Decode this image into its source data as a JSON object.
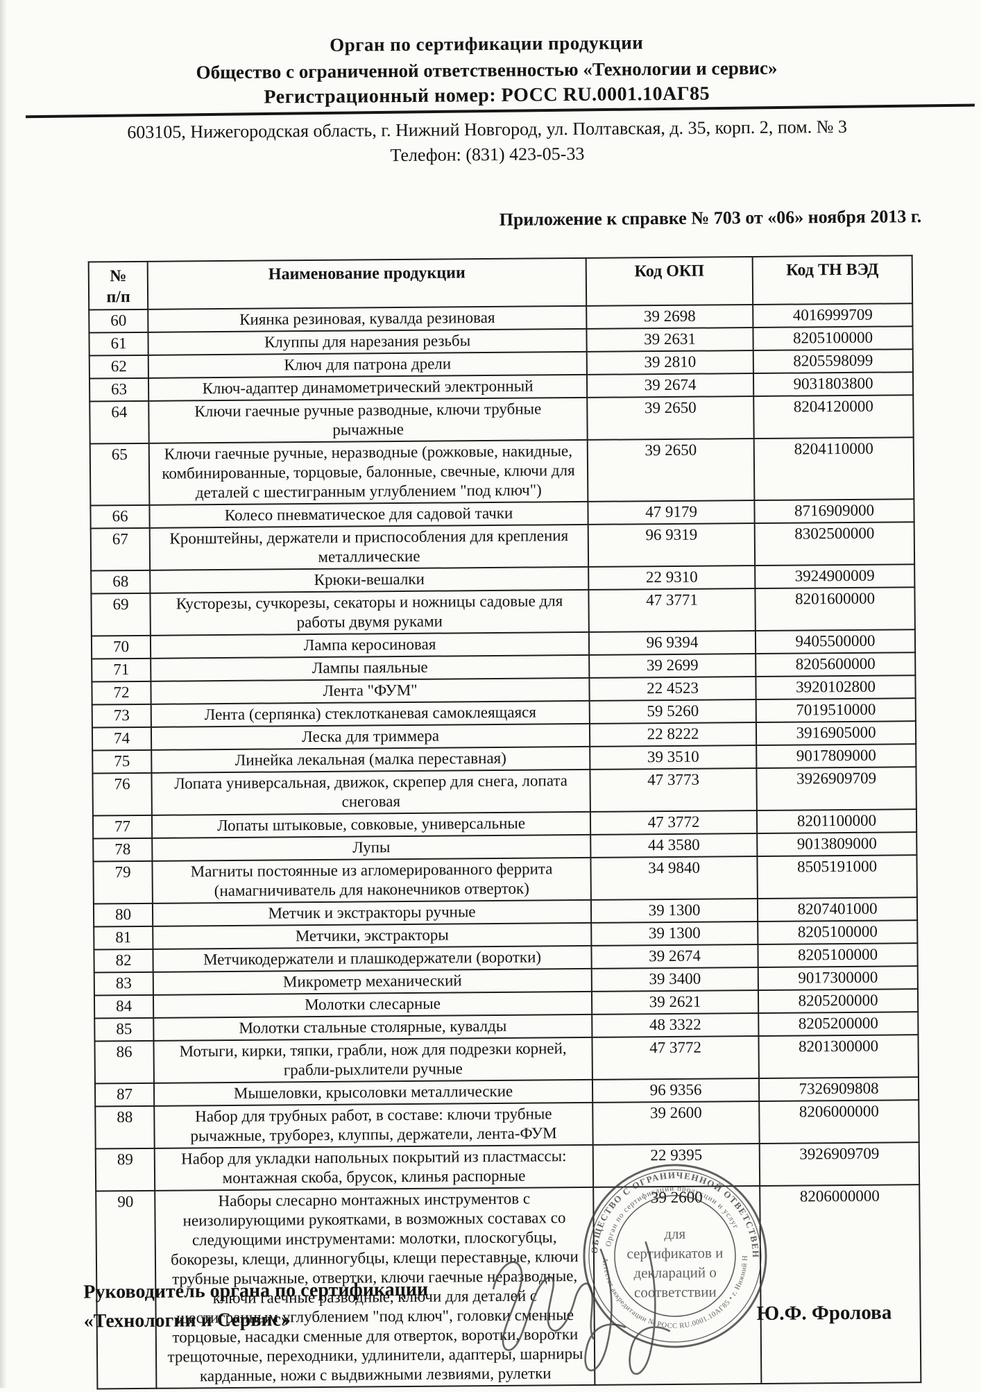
{
  "header": {
    "line1": "Орган по сертификации продукции",
    "line2": "Общество с ограниченной ответственностью «Технологии и сервис»",
    "line3": "Регистрационный номер: РОСС RU.0001.10АГ85",
    "address": "603105, Нижегородская область, г. Нижний Новгород, ул. Полтавская, д. 35, корп. 2, пом. № 3",
    "phone": "Телефон: (831) 423-05-33"
  },
  "appendix_title": "Приложение к справке № 703 от «06» ноября 2013 г.",
  "table": {
    "col_num_line1": "№",
    "col_num_line2": "п/п",
    "col_name": "Наименование продукции",
    "col_okp": "Код ОКП",
    "col_tnved": "Код ТН ВЭД",
    "rows": [
      {
        "num": "60",
        "name": "Киянка резиновая, кувалда резиновая",
        "okp": "39 2698",
        "tnved": "4016999709"
      },
      {
        "num": "61",
        "name": "Клуппы для нарезания резьбы",
        "okp": "39 2631",
        "tnved": "8205100000"
      },
      {
        "num": "62",
        "name": "Ключ для патрона дрели",
        "okp": "39 2810",
        "tnved": "8205598099"
      },
      {
        "num": "63",
        "name": "Ключ-адаптер динамометрический электронный",
        "okp": "39 2674",
        "tnved": "9031803800"
      },
      {
        "num": "64",
        "name": "Ключи гаечные ручные разводные, ключи трубные рычажные",
        "okp": "39 2650",
        "tnved": "8204120000"
      },
      {
        "num": "65",
        "name": "Ключи гаечные ручные, неразводные (рожковые, накидные, комбинированные, торцовые, балонные, свечные, ключи для деталей с шестигранным углублением \"под ключ\")",
        "okp": "39 2650",
        "tnved": "8204110000"
      },
      {
        "num": "66",
        "name": "Колесо пневматическое для садовой тачки",
        "okp": "47 9179",
        "tnved": "8716909000"
      },
      {
        "num": "67",
        "name": "Кронштейны, держатели и приспособления для крепления металлические",
        "okp": "96 9319",
        "tnved": "8302500000"
      },
      {
        "num": "68",
        "name": "Крюки-вешалки",
        "okp": "22 9310",
        "tnved": "3924900009"
      },
      {
        "num": "69",
        "name": "Кусторезы, сучкорезы, секаторы и ножницы садовые для работы двумя руками",
        "okp": "47 3771",
        "tnved": "8201600000"
      },
      {
        "num": "70",
        "name": "Лампа керосиновая",
        "okp": "96 9394",
        "tnved": "9405500000"
      },
      {
        "num": "71",
        "name": "Лампы паяльные",
        "okp": "39 2699",
        "tnved": "8205600000"
      },
      {
        "num": "72",
        "name": "Лента \"ФУМ\"",
        "okp": "22 4523",
        "tnved": "3920102800"
      },
      {
        "num": "73",
        "name": "Лента (серпянка) стеклотканевая самоклеящаяся",
        "okp": "59 5260",
        "tnved": "7019510000"
      },
      {
        "num": "74",
        "name": "Леска для триммера",
        "okp": "22 8222",
        "tnved": "3916905000"
      },
      {
        "num": "75",
        "name": "Линейка лекальная (малка переставная)",
        "okp": "39 3510",
        "tnved": "9017809000"
      },
      {
        "num": "76",
        "name": "Лопата универсальная, движок, скрепер для снега, лопата снеговая",
        "okp": "47 3773",
        "tnved": "3926909709"
      },
      {
        "num": "77",
        "name": "Лопаты штыковые, совковые, универсальные",
        "okp": "47 3772",
        "tnved": "8201100000"
      },
      {
        "num": "78",
        "name": "Лупы",
        "okp": "44 3580",
        "tnved": "9013809000"
      },
      {
        "num": "79",
        "name": "Магниты постоянные из агломерированного феррита (намагничиватель для наконечников отверток)",
        "okp": "34 9840",
        "tnved": "8505191000"
      },
      {
        "num": "80",
        "name": "Метчик и экстракторы ручные",
        "okp": "39 1300",
        "tnved": "8207401000"
      },
      {
        "num": "81",
        "name": "Метчики, экстракторы",
        "okp": "39 1300",
        "tnved": "8205100000"
      },
      {
        "num": "82",
        "name": "Метчикодержатели и плашкодержатели (воротки)",
        "okp": "39 2674",
        "tnved": "8205100000"
      },
      {
        "num": "83",
        "name": "Микрометр механический",
        "okp": "39 3400",
        "tnved": "9017300000"
      },
      {
        "num": "84",
        "name": "Молотки слесарные",
        "okp": "39 2621",
        "tnved": "8205200000"
      },
      {
        "num": "85",
        "name": "Молотки стальные столярные, кувалды",
        "okp": "48 3322",
        "tnved": "8205200000"
      },
      {
        "num": "86",
        "name": "Мотыги, кирки, тяпки, грабли, нож для подрезки корней, грабли-рыхлители ручные",
        "okp": "47 3772",
        "tnved": "8201300000"
      },
      {
        "num": "87",
        "name": "Мышеловки, крысоловки металлические",
        "okp": "96 9356",
        "tnved": "7326909808"
      },
      {
        "num": "88",
        "name": "Набор для трубных работ, в составе: ключи трубные рычажные, труборез, клуппы, держатели, лента-ФУМ",
        "okp": "39 2600",
        "tnved": "8206000000"
      },
      {
        "num": "89",
        "name": "Набор для укладки напольных покрытий из пластмассы: монтажная скоба, брусок, клинья распорные",
        "okp": "22 9395",
        "tnved": "3926909709"
      },
      {
        "num": "90",
        "name": "Наборы слесарно монтажных инструментов с неизолирующими рукоятками, в возможных составах со следующими инструментами: молотки, плоскогубцы, бокорезы, клещи, длинногубцы, клещи переставные, ключи трубные рычажные, отвертки, ключи гаечные неразводные, ключи гаечные разводные, ключи для деталей с шестигранным углублением \"под ключ\", головки сменные торцовые, насадки сменные для отверток, воротки, воротки трещоточные, переходники, удлинители, адаптеры, шарниры карданные, ножи с выдвижными лезвиями, рулетки",
        "okp": "39 2600",
        "tnved": "8206000000"
      }
    ]
  },
  "footer": {
    "left_line1": "Руководитель органа по сертификации",
    "left_line2": "«Технологии и Сервис»",
    "signer": "Ю.Ф. Фролова"
  },
  "stamp": {
    "ring_outer_text": "ОБЩЕСТВО С ОГРАНИЧЕННОЙ ОТВЕТСТВЕННОСТЬЮ «Технологии и Сервис»",
    "ring_inner_text": "Орган по сертификации продукции и услуг",
    "ring_bottom_text": "Аттестат аккредитации № РОСС RU.0001.10АГ85 • г. Нижний Новгород",
    "center_line1": "для",
    "center_line2": "сертификатов и",
    "center_line3": "деклараций о",
    "center_line4": "соответствии"
  },
  "ink_color": "#3f3f3f"
}
